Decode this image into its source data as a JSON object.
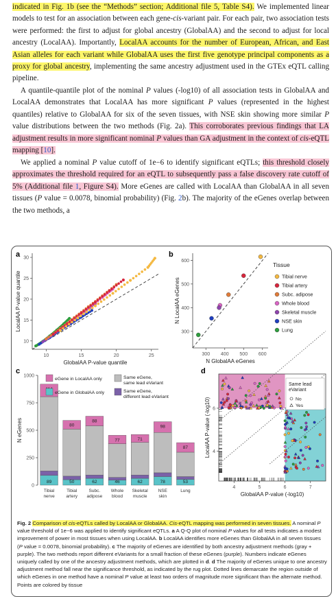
{
  "body": {
    "p1": [
      {
        "t": "indicated in Fig. 1b (see the “Methods” section; Additional file 5, Table S4).",
        "h": "y"
      },
      {
        "t": " We implemented linear models to test for an association between each gene-"
      },
      {
        "t": "cis",
        "i": true
      },
      {
        "t": "-variant pair. For each pair, two association tests were performed: the first to adjust for global ancestry (GlobalAA) and the second to adjust for local ancestry (LocalAA). Importantly, "
      },
      {
        "t": "LocalAA accounts for the number of European, African, and East Asian alleles for each variant while GlobalAA uses the first five genotype principal components as a proxy for global ancestry",
        "h": "y"
      },
      {
        "t": ", implementing the same ancestry adjustment used in the GTEx eQTL calling pipeline."
      }
    ],
    "p2": [
      {
        "t": "A quantile-quantile plot of the nominal "
      },
      {
        "t": "P",
        "i": true
      },
      {
        "t": " values (-log10) of all association tests in GlobalAA and LocalAA demonstrates that LocalAA has more significant "
      },
      {
        "t": "P",
        "i": true
      },
      {
        "t": " values (represented in the highest quantiles) relative to GlobalAA for six of the seven tissues, with NSE skin showing more similar "
      },
      {
        "t": "P",
        "i": true
      },
      {
        "t": " value distributions between the two methods (Fig. 2a). "
      },
      {
        "t": "This corroborates previous findings that LA adjustment results in more significant nominal ",
        "h": "p"
      },
      {
        "t": "P",
        "i": true,
        "h": "p"
      },
      {
        "t": " values than GA adjustment in the context of ",
        "h": "p"
      },
      {
        "t": "cis",
        "i": true,
        "h": "p"
      },
      {
        "t": "-eQTL mapping [",
        "h": "p"
      },
      {
        "t": "10",
        "h": "p",
        "l": true
      },
      {
        "t": "].",
        "h": "p"
      }
    ],
    "p3": [
      {
        "t": "We applied a nominal "
      },
      {
        "t": "P",
        "i": true
      },
      {
        "t": " value cutoff of 1e−6 to identify significant eQTLs; "
      },
      {
        "t": "this threshold closely approximates the threshold required for an eQTL to subsequently pass a false discovery rate cutoff of 5% (Additional file ",
        "h": "p"
      },
      {
        "t": "1",
        "h": "p",
        "l": true
      },
      {
        "t": ", Figure S4).",
        "h": "p"
      },
      {
        "t": " More eGenes are called with LocalAA than GlobalAA in all seven tissues ("
      },
      {
        "t": "P",
        "i": true
      },
      {
        "t": " value = 0.0078, binomial probability) (Fig. "
      },
      {
        "t": "2",
        "l": true
      },
      {
        "t": "b). The majority of the eGenes overlap between the two methods, a"
      }
    ]
  },
  "caption": [
    {
      "t": "Fig. 2",
      "b": true
    },
    {
      "t": " "
    },
    {
      "t": "Comparison of ",
      "h": "y"
    },
    {
      "t": "cis",
      "i": true,
      "h": "y"
    },
    {
      "t": "-eQTLs called by LocalAA or GlobalAA. ",
      "h": "y"
    },
    {
      "t": "Cis",
      "i": true,
      "h": "y"
    },
    {
      "t": "-eQTL mapping was performed in seven tissues.",
      "h": "y"
    },
    {
      "t": " A nominal "
    },
    {
      "t": "P",
      "i": true
    },
    {
      "t": " value threshold of 1e−6 was applied to identify significant eQTLs. "
    },
    {
      "t": "a",
      "b": true
    },
    {
      "t": " A Q-Q plot of nominal "
    },
    {
      "t": "P",
      "i": true
    },
    {
      "t": " values for all tests indicates a modest improvement of power in most tissues when using LocalAA. "
    },
    {
      "t": "b",
      "b": true
    },
    {
      "t": " LocalAA identifies more eGenes than GlobalAA in all seven tissues ("
    },
    {
      "t": "P",
      "i": true
    },
    {
      "t": " value = 0.0078, binomial probability). "
    },
    {
      "t": "c",
      "b": true
    },
    {
      "t": " The majority of eGenes are identified by both ancestry adjustment methods (gray + purple). The two methods report different eVariants for a small fraction of these eGenes (purple). Numbers indicate eGenes uniquely called by one of the ancestry adjustment methods, which are plotted in "
    },
    {
      "t": "d",
      "b": true
    },
    {
      "t": ". "
    },
    {
      "t": "d",
      "b": true
    },
    {
      "t": " The majority of eGenes unique to one ancestry adjustment method fall near the significance threshold, as indicated by the rug plot. Dotted lines demarcate the region outside of which eGenes in one method have a nominal "
    },
    {
      "t": "P",
      "i": true
    },
    {
      "t": " value at least two orders of magnitude more significant than the alternate method. Points are colored by tissue"
    }
  ],
  "colors": {
    "highlight_yellow": "#fdf66a",
    "highlight_pink": "#f8c6d4",
    "link_blue": "#2a56c6",
    "tibial_nerve": "#f4b942",
    "tibial_artery": "#d7263d",
    "subc_adipose": "#e07b39",
    "whole_blood": "#d966c4",
    "skeletal_muscle": "#8e44ad",
    "nse_skin": "#1f3fbf",
    "lung": "#2e9e3e",
    "localaa_only": "#d671ae",
    "globalaa_only": "#59c3c8",
    "same_lead": "#bdbdbd",
    "diff_lead": "#7b61a8"
  },
  "chart_data": [
    {
      "panel": "a",
      "type": "scatter",
      "title": "",
      "xlabel": "GlobalAA P-value quantile",
      "ylabel": "LocalAA P-value quantile",
      "xlim": [
        8,
        26
      ],
      "ylim": [
        8,
        31
      ],
      "xticks": [
        "10",
        "15",
        "20",
        "25"
      ],
      "yticks": [
        "10",
        "15",
        "20",
        "25",
        "30"
      ],
      "reference_line": "dashed y = x",
      "series": [
        {
          "color_key": "lung",
          "x": [
            8.5,
            9.5,
            10.5,
            11.5,
            12.5,
            13.3
          ],
          "y": [
            8.8,
            9.9,
            11.2,
            12.6,
            14.1,
            15.4
          ]
        },
        {
          "color_key": "nse_skin",
          "x": [
            9,
            10.5,
            12,
            13.5,
            15,
            16.5
          ],
          "y": [
            9.2,
            10.8,
            12.5,
            14.1,
            15.7,
            17.3
          ]
        },
        {
          "color_key": "skeletal_muscle",
          "x": [
            9.5,
            11,
            12.5,
            14,
            15.5,
            17
          ],
          "y": [
            9.8,
            11.6,
            13.4,
            15.2,
            17.1,
            18.9
          ]
        },
        {
          "color_key": "whole_blood",
          "x": [
            10,
            12,
            14,
            16,
            18,
            19.5
          ],
          "y": [
            10.4,
            12.8,
            15.2,
            17.8,
            20.4,
            22.4
          ]
        },
        {
          "color_key": "subc_adipose",
          "x": [
            10,
            12,
            14,
            16,
            18,
            20
          ],
          "y": [
            10.5,
            13,
            15.6,
            18.2,
            20.8,
            23.5
          ]
        },
        {
          "color_key": "tibial_artery",
          "x": [
            11,
            13,
            15,
            17,
            19,
            21
          ],
          "y": [
            11.6,
            14.1,
            16.7,
            19.3,
            22,
            24.6
          ]
        },
        {
          "color_key": "tibial_nerve",
          "x": [
            12,
            14.5,
            17,
            19.5,
            22,
            24.5,
            25.5
          ],
          "y": [
            12.5,
            15.5,
            18.4,
            21.4,
            24.5,
            27.6,
            29.8
          ]
        }
      ]
    },
    {
      "panel": "b",
      "type": "scatter",
      "title": "",
      "xlabel": "N GlobalAA eGenes",
      "ylabel": "N LocalAA eGenes",
      "xlim": [
        230,
        630
      ],
      "ylim": [
        230,
        630
      ],
      "xticks": [
        "300",
        "400",
        "500",
        "600"
      ],
      "yticks": [
        "300",
        "400",
        "500",
        "600"
      ],
      "reference_line": "dashed y = x",
      "legend_title": "Tissue",
      "legend_position": "right",
      "points": [
        {
          "name": "Tibial nerve",
          "color_key": "tibial_nerve",
          "x": 590,
          "y": 615
        },
        {
          "name": "Tibial artery",
          "color_key": "tibial_artery",
          "x": 500,
          "y": 535
        },
        {
          "name": "Subc. adipose",
          "color_key": "subc_adipose",
          "x": 420,
          "y": 455
        },
        {
          "name": "Whole blood",
          "color_key": "whole_blood",
          "x": 375,
          "y": 410
        },
        {
          "name": "Skeletal muscle",
          "color_key": "skeletal_muscle",
          "x": 370,
          "y": 400
        },
        {
          "name": "NSE skin",
          "color_key": "nse_skin",
          "x": 330,
          "y": 355
        },
        {
          "name": "Lung",
          "color_key": "lung",
          "x": 260,
          "y": 285
        }
      ]
    },
    {
      "panel": "c",
      "type": "bar",
      "title": "",
      "xlabel": "",
      "ylabel": "N eGenes",
      "ylim": [
        0,
        1000
      ],
      "yticks": [
        "0",
        "250",
        "500",
        "750",
        "1000"
      ],
      "categories": [
        "Tibial nerve",
        "Tibial artery",
        "Subc. adipose",
        "Whole blood",
        "Skeletal muscle",
        "NSE skin",
        "Lung"
      ],
      "series": [
        {
          "name": "eGene in GlobalAA only",
          "color_key": "globalaa_only",
          "values": [
            89,
            50,
            62,
            46,
            62,
            78,
            53
          ]
        },
        {
          "name": "Same eGene, different lead eVariant",
          "color_key": "diff_lead",
          "values": [
            40,
            32,
            30,
            25,
            30,
            35,
            25
          ]
        },
        {
          "name": "Same eGene, same lead eVariant",
          "color_key": "same_lead",
          "values": [
            677,
            428,
            448,
            306,
            298,
            367,
            222
          ]
        },
        {
          "name": "eGene in LocalAA only",
          "color_key": "localaa_only",
          "values": [
            114,
            80,
            88,
            77,
            71,
            98,
            87
          ]
        }
      ],
      "legend_position": "top"
    },
    {
      "panel": "d",
      "type": "scatter",
      "title": "",
      "xlabel": "GlobalAA P-value (-log10)",
      "ylabel": "LocalAA P-value (-log10)",
      "xlim": [
        3.4,
        7.6
      ],
      "ylim": [
        2.6,
        7.6
      ],
      "xticks": [
        "4",
        "5",
        "6",
        "7"
      ],
      "yticks": [
        "4",
        "6"
      ],
      "threshold": 6,
      "legend_title": "Same lead eVariant",
      "legend_entries": [
        "No",
        "Yes"
      ],
      "legend_position": "top-right",
      "note": "points concentrated near the threshold; rug plots on both axes; dotted lines offset by two orders of magnitude"
    }
  ],
  "panel_labels": {
    "a": "a",
    "b": "b",
    "c": "c",
    "d": "d"
  }
}
